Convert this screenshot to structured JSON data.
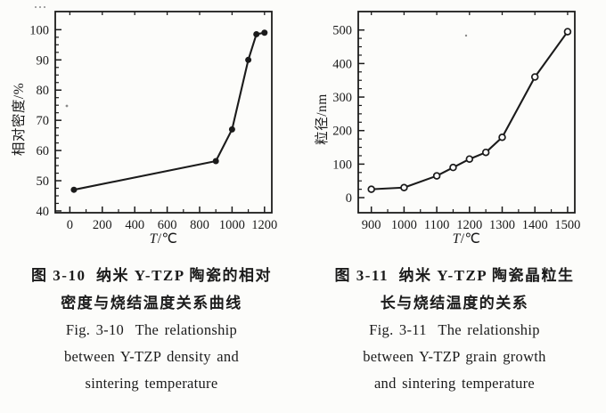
{
  "page": {
    "paper_color": "#fcfcfa",
    "ink_color": "#1b1b1b"
  },
  "chart_data": [
    {
      "id": "fig-3-10",
      "type": "line",
      "title": "",
      "xlabel": "T/℃",
      "ylabel": "相对密度/%",
      "x": [
        25,
        900,
        1000,
        1100,
        1150,
        1200
      ],
      "y": [
        47,
        56.5,
        67,
        90,
        98.5,
        99
      ],
      "marker": "filled-circle",
      "xlim": [
        -90,
        1245
      ],
      "ylim": [
        39.4,
        106
      ],
      "xticks": [
        0,
        200,
        400,
        600,
        800,
        1000,
        1200
      ],
      "yticks": [
        40,
        50,
        60,
        70,
        80,
        90,
        100
      ],
      "xtick_minor_step": 100,
      "ytick_minor_step": 2.5,
      "grid": false,
      "legend": null,
      "speckles": [
        [
          75,
          119,
          1.4
        ],
        [
          40,
          8,
          1.0
        ],
        [
          45,
          8,
          1.0
        ],
        [
          50,
          8,
          1.0
        ]
      ]
    },
    {
      "id": "fig-3-11",
      "type": "line",
      "title": "",
      "xlabel": "T/℃",
      "ylabel": "粒径/nm",
      "x": [
        900,
        1000,
        1100,
        1150,
        1200,
        1250,
        1300,
        1400,
        1500
      ],
      "y": [
        25,
        30,
        65,
        90,
        115,
        135,
        180,
        360,
        495
      ],
      "marker": "open-circle",
      "xlim": [
        860,
        1522
      ],
      "ylim": [
        -45,
        555
      ],
      "xticks": [
        900,
        1000,
        1100,
        1200,
        1300,
        1400,
        1500
      ],
      "yticks": [
        0,
        100,
        200,
        300,
        400,
        500
      ],
      "xtick_minor_step": 50,
      "ytick_minor_step": 25,
      "grid": false,
      "legend": null,
      "speckles": [
        [
          183,
          40,
          1.2
        ]
      ]
    }
  ],
  "figures": [
    {
      "caption_cn": [
        "图 3-10  纳米 Y-TZP 陶瓷的相对",
        "密度与烧结温度关系曲线"
      ],
      "caption_en": [
        "Fig. 3-10  The relationship",
        "between Y-TZP density and",
        "sintering temperature"
      ]
    },
    {
      "caption_cn": [
        "图 3-11  纳米 Y-TZP 陶瓷晶粒生",
        "长与烧结温度的关系"
      ],
      "caption_en": [
        "Fig. 3-11  The relationship",
        "between Y-TZP grain growth",
        "and sintering temperature"
      ]
    }
  ]
}
